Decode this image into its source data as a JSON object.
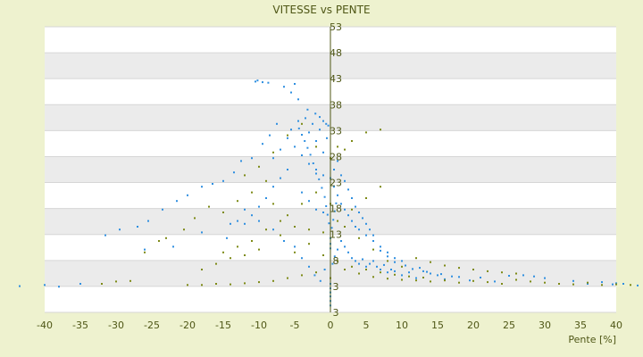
{
  "chart_data": {
    "type": "scatter",
    "title": "VITESSE vs PENTE",
    "xlabel": "Pente [%]",
    "ylabel": "",
    "xlim": [
      -40,
      40
    ],
    "ylim": [
      3,
      53
    ],
    "x_ticks": [
      "-40",
      "-35",
      "-30",
      "-25",
      "-20",
      "-15",
      "-10",
      "-5",
      "0",
      "5",
      "10",
      "15",
      "20",
      "25",
      "30",
      "35",
      "40"
    ],
    "y_ticks": [
      "3",
      "3",
      "8",
      "13",
      "18",
      "23",
      "28",
      "33",
      "38",
      "43",
      "48",
      "53"
    ],
    "grid": "horizontal bands",
    "series": [
      {
        "color": "#2f8fe0",
        "points": [
          [
            -10.5,
            43.4
          ],
          [
            -10.2,
            43.6
          ],
          [
            -9.5,
            43.3
          ],
          [
            -8.7,
            43.2
          ],
          [
            -6.5,
            42.5
          ],
          [
            -5.5,
            41.5
          ],
          [
            -5,
            43.0
          ],
          [
            -4.5,
            40.3
          ],
          [
            -3.2,
            38.5
          ],
          [
            -2.1,
            37.8
          ],
          [
            -1.5,
            37.2
          ],
          [
            -1,
            36.5
          ],
          [
            -0.6,
            36.0
          ],
          [
            -0.3,
            35.7
          ],
          [
            -7.5,
            36.0
          ],
          [
            -8.5,
            34.0
          ],
          [
            -9.5,
            32.5
          ],
          [
            -11,
            30.0
          ],
          [
            -12.5,
            29.5
          ],
          [
            -13.5,
            27.5
          ],
          [
            -15,
            26.0
          ],
          [
            -16.5,
            25.5
          ],
          [
            -18,
            25.0
          ],
          [
            -20,
            23.5
          ],
          [
            -21.5,
            22.5
          ],
          [
            -23.5,
            21.0
          ],
          [
            -25.5,
            19.0
          ],
          [
            -27,
            18.0
          ],
          [
            -29.5,
            17.5
          ],
          [
            -31.5,
            16.5
          ],
          [
            -35,
            8.0
          ],
          [
            -38,
            7.5
          ],
          [
            -40,
            7.8
          ],
          [
            -43.5,
            7.6
          ],
          [
            -26,
            14.0
          ],
          [
            -22,
            14.5
          ],
          [
            -18,
            17.0
          ],
          [
            -14.5,
            16.0
          ],
          [
            -12,
            18.5
          ],
          [
            -10,
            19.0
          ],
          [
            -8,
            17.5
          ],
          [
            -6.5,
            15.5
          ],
          [
            -5,
            14.5
          ],
          [
            -4,
            12.5
          ],
          [
            -3,
            11.0
          ],
          [
            -2.2,
            9.5
          ],
          [
            -1.4,
            8.5
          ],
          [
            -0.8,
            10.5
          ],
          [
            0,
            8.0
          ],
          [
            0,
            7.2
          ],
          [
            0,
            6.5
          ],
          [
            0,
            5.8
          ],
          [
            0,
            5.0
          ],
          [
            0,
            4.2
          ],
          [
            0.3,
            11.5
          ],
          [
            0.6,
            12.8
          ],
          [
            1,
            14.0
          ],
          [
            1.5,
            15.5
          ],
          [
            2,
            14.5
          ],
          [
            2.5,
            13.5
          ],
          [
            3,
            12.5
          ],
          [
            3.5,
            12.0
          ],
          [
            4,
            11.5
          ],
          [
            4.5,
            12.3
          ],
          [
            5,
            11.0
          ],
          [
            5.5,
            11.5
          ],
          [
            6,
            12.0
          ],
          [
            6.5,
            11.0
          ],
          [
            7,
            10.5
          ],
          [
            7.5,
            11.3
          ],
          [
            8,
            10.0
          ],
          [
            8.5,
            10.5
          ],
          [
            9,
            10.2
          ],
          [
            10,
            9.5
          ],
          [
            11,
            10.0
          ],
          [
            12,
            9.0
          ],
          [
            13,
            10.2
          ],
          [
            14,
            9.8
          ],
          [
            15,
            9.5
          ],
          [
            16,
            8.8
          ],
          [
            18,
            9.2
          ],
          [
            19.5,
            8.6
          ],
          [
            21,
            9.1
          ],
          [
            23,
            8.4
          ],
          [
            25,
            9.4
          ],
          [
            27,
            9.5
          ],
          [
            28.5,
            9.3
          ],
          [
            30,
            9.0
          ],
          [
            32,
            8.0
          ],
          [
            34,
            8.5
          ],
          [
            36,
            8.0
          ],
          [
            38,
            8.3
          ],
          [
            39.5,
            7.9
          ],
          [
            40,
            8.1
          ],
          [
            41,
            8.0
          ],
          [
            43,
            7.7
          ],
          [
            -5,
            32.0
          ],
          [
            -4,
            30.5
          ],
          [
            -3,
            29.0
          ],
          [
            -2,
            28.0
          ],
          [
            -1,
            27.0
          ],
          [
            0,
            26.5
          ],
          [
            0.5,
            25.0
          ],
          [
            1,
            23.5
          ],
          [
            1.5,
            22.0
          ],
          [
            2,
            21.0
          ],
          [
            2.5,
            20.0
          ],
          [
            3,
            19.0
          ],
          [
            3.5,
            18.0
          ],
          [
            4,
            17.5
          ],
          [
            5,
            16.5
          ],
          [
            6,
            15.5
          ],
          [
            7,
            14.5
          ],
          [
            8,
            13.5
          ],
          [
            9,
            12.5
          ],
          [
            10,
            12.0
          ],
          [
            -6,
            28.0
          ],
          [
            -7,
            26.5
          ],
          [
            -8,
            25.0
          ],
          [
            -9,
            23.0
          ],
          [
            -10,
            21.5
          ],
          [
            -11,
            20.0
          ],
          [
            -12,
            21.0
          ],
          [
            -13,
            19.0
          ],
          [
            -14,
            18.5
          ],
          [
            -4,
            24.0
          ],
          [
            -3,
            22.5
          ],
          [
            -2,
            21.0
          ],
          [
            -1,
            20.5
          ],
          [
            -1,
            31.0
          ],
          [
            -2,
            33.0
          ],
          [
            -3,
            34.5
          ],
          [
            -0.5,
            33.5
          ],
          [
            -1.5,
            35.0
          ],
          [
            -6,
            33.5
          ],
          [
            -5.5,
            35.0
          ],
          [
            -4.5,
            36.5
          ],
          [
            -3.5,
            37.0
          ],
          [
            -2.5,
            36.0
          ],
          [
            -8,
            30.0
          ],
          [
            -7,
            31.5
          ],
          [
            0.5,
            28.0
          ],
          [
            1,
            29.5
          ],
          [
            1.5,
            27.0
          ],
          [
            2,
            26.0
          ],
          [
            2.5,
            24.5
          ],
          [
            3,
            23.0
          ],
          [
            3.5,
            21.5
          ],
          [
            4,
            20.5
          ],
          [
            4.5,
            19.5
          ],
          [
            5,
            18.5
          ],
          [
            5.5,
            17.5
          ],
          [
            6,
            16.5
          ],
          [
            7,
            13.8
          ],
          [
            8,
            12.8
          ],
          [
            9,
            11.8
          ],
          [
            10.5,
            11.2
          ],
          [
            11.5,
            10.6
          ],
          [
            12.5,
            10.8
          ],
          [
            13.5,
            10.1
          ],
          [
            15.5,
            9.7
          ],
          [
            17,
            9.3
          ],
          [
            0,
            16.0
          ],
          [
            0,
            15.0
          ],
          [
            0,
            14.2
          ],
          [
            0.2,
            17.8
          ],
          [
            0.4,
            19.2
          ],
          [
            0.6,
            20.7
          ],
          [
            0.8,
            22.1
          ],
          [
            -0.2,
            18.6
          ],
          [
            -0.4,
            20.1
          ],
          [
            -0.6,
            21.6
          ],
          [
            -0.8,
            23.2
          ],
          [
            -1.2,
            24.8
          ],
          [
            -1.6,
            26.3
          ],
          [
            -2,
            27.3
          ],
          [
            -2.4,
            29.1
          ],
          [
            -2.8,
            30.6
          ],
          [
            -3.2,
            31.8
          ],
          [
            -3.6,
            33.0
          ],
          [
            -4,
            34.1
          ],
          [
            -4.4,
            35.2
          ]
        ]
      },
      {
        "color": "#7d8a16",
        "points": [
          [
            -12,
            27.0
          ],
          [
            -11,
            24.0
          ],
          [
            -13,
            22.5
          ],
          [
            -15,
            20.5
          ],
          [
            -17,
            21.5
          ],
          [
            -19,
            19.5
          ],
          [
            -20.5,
            17.5
          ],
          [
            -23,
            16.0
          ],
          [
            -24,
            15.5
          ],
          [
            -26,
            13.5
          ],
          [
            -28,
            8.5
          ],
          [
            -30,
            8.4
          ],
          [
            -32,
            8.0
          ],
          [
            -20,
            7.8
          ],
          [
            -18,
            7.8
          ],
          [
            -16,
            8.0
          ],
          [
            -14,
            7.9
          ],
          [
            -12,
            8.1
          ],
          [
            -10,
            8.3
          ],
          [
            -8,
            8.5
          ],
          [
            -6,
            9.0
          ],
          [
            -4,
            9.5
          ],
          [
            -2,
            10.0
          ],
          [
            0,
            9.0
          ],
          [
            2,
            10.5
          ],
          [
            4,
            9.8
          ],
          [
            6,
            9.2
          ],
          [
            8,
            8.9
          ],
          [
            10,
            8.7
          ],
          [
            12,
            8.6
          ],
          [
            14,
            8.4
          ],
          [
            16,
            8.6
          ],
          [
            18,
            8.2
          ],
          [
            20,
            8.5
          ],
          [
            22,
            8.3
          ],
          [
            24,
            8.0
          ],
          [
            26,
            8.7
          ],
          [
            28,
            8.4
          ],
          [
            30,
            8.2
          ],
          [
            32,
            8.0
          ],
          [
            34,
            7.9
          ],
          [
            36,
            8.2
          ],
          [
            38,
            7.8
          ],
          [
            40,
            7.9
          ],
          [
            42,
            7.8
          ],
          [
            -5,
            13.5
          ],
          [
            -3,
            15.0
          ],
          [
            -1,
            17.0
          ],
          [
            1,
            19.0
          ],
          [
            3,
            21.0
          ],
          [
            5,
            23.0
          ],
          [
            7,
            25.0
          ],
          [
            -6,
            20.0
          ],
          [
            -4,
            22.0
          ],
          [
            -2,
            24.0
          ],
          [
            0,
            22.0
          ],
          [
            2,
            18.0
          ],
          [
            4,
            16.0
          ],
          [
            6,
            14.0
          ],
          [
            8,
            12.0
          ],
          [
            10,
            11.0
          ],
          [
            12,
            12.5
          ],
          [
            14,
            11.8
          ],
          [
            16,
            11.2
          ],
          [
            18,
            10.8
          ],
          [
            20,
            10.5
          ],
          [
            22,
            10.2
          ],
          [
            24,
            10.0
          ],
          [
            26,
            9.8
          ],
          [
            -9,
            17.5
          ],
          [
            -7,
            16.5
          ],
          [
            -11,
            15.5
          ],
          [
            -13,
            14.5
          ],
          [
            -15,
            13.5
          ],
          [
            -8,
            31.0
          ],
          [
            -6,
            34.0
          ],
          [
            -4,
            36.0
          ],
          [
            -2,
            32.0
          ],
          [
            0,
            30.0
          ],
          [
            1,
            32.0
          ],
          [
            2,
            31.5
          ],
          [
            3,
            33.0
          ],
          [
            5,
            34.5
          ],
          [
            7,
            35.0
          ],
          [
            -10,
            28.5
          ],
          [
            -9,
            26.0
          ],
          [
            -8,
            22.0
          ],
          [
            -7,
            19.0
          ],
          [
            -5,
            18.0
          ],
          [
            -3,
            17.5
          ],
          [
            -1,
            13.0
          ],
          [
            1,
            12.0
          ],
          [
            3,
            11.0
          ],
          [
            5,
            10.5
          ],
          [
            7,
            10.0
          ],
          [
            9,
            9.6
          ],
          [
            11,
            9.3
          ],
          [
            13,
            9.1
          ],
          [
            -18,
            10.5
          ],
          [
            -16,
            11.5
          ],
          [
            -14,
            12.5
          ],
          [
            -12,
            13.0
          ],
          [
            -10,
            14.0
          ]
        ]
      }
    ]
  }
}
